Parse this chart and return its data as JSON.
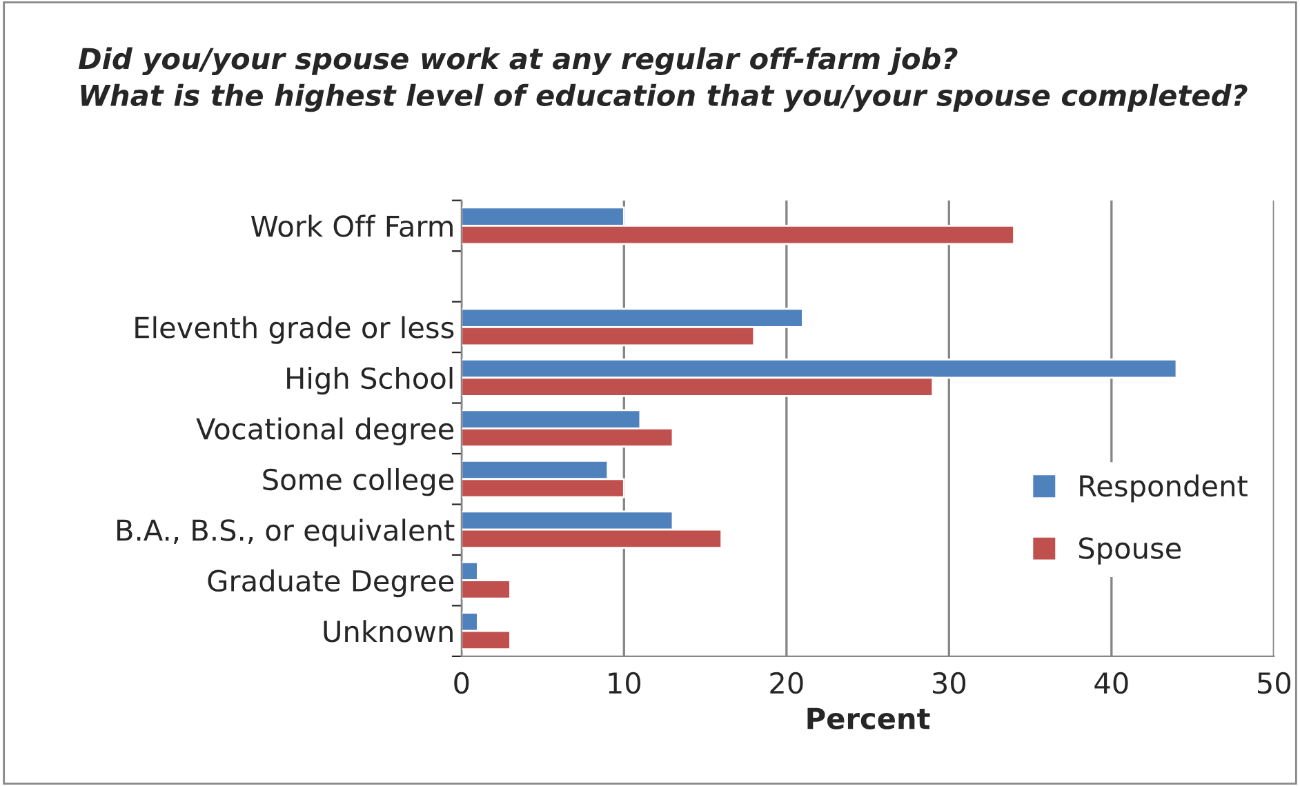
{
  "chart_data": {
    "type": "bar",
    "orientation": "horizontal",
    "title": "Did you/your spouse work at any regular off-farm job?\nWhat is the highest level of education that you/your spouse completed?",
    "xlabel": "Percent",
    "categories": [
      "Work Off Farm",
      null,
      "Eleventh grade or less",
      "High School",
      "Vocational degree",
      "Some college",
      "B.A., B.S., or equivalent",
      "Graduate Degree",
      "Unknown"
    ],
    "series": [
      {
        "name": "Respondent",
        "color": "#4f81bd",
        "values": [
          10,
          null,
          21,
          44,
          11,
          9,
          13,
          1,
          1
        ]
      },
      {
        "name": "Spouse",
        "color": "#c0504d",
        "values": [
          34,
          null,
          18,
          29,
          13,
          10,
          16,
          3,
          3
        ]
      }
    ],
    "xlim": [
      0,
      50
    ],
    "xticks": [
      0,
      10,
      20,
      30,
      40,
      50
    ],
    "grid": "x",
    "legend": "right"
  }
}
